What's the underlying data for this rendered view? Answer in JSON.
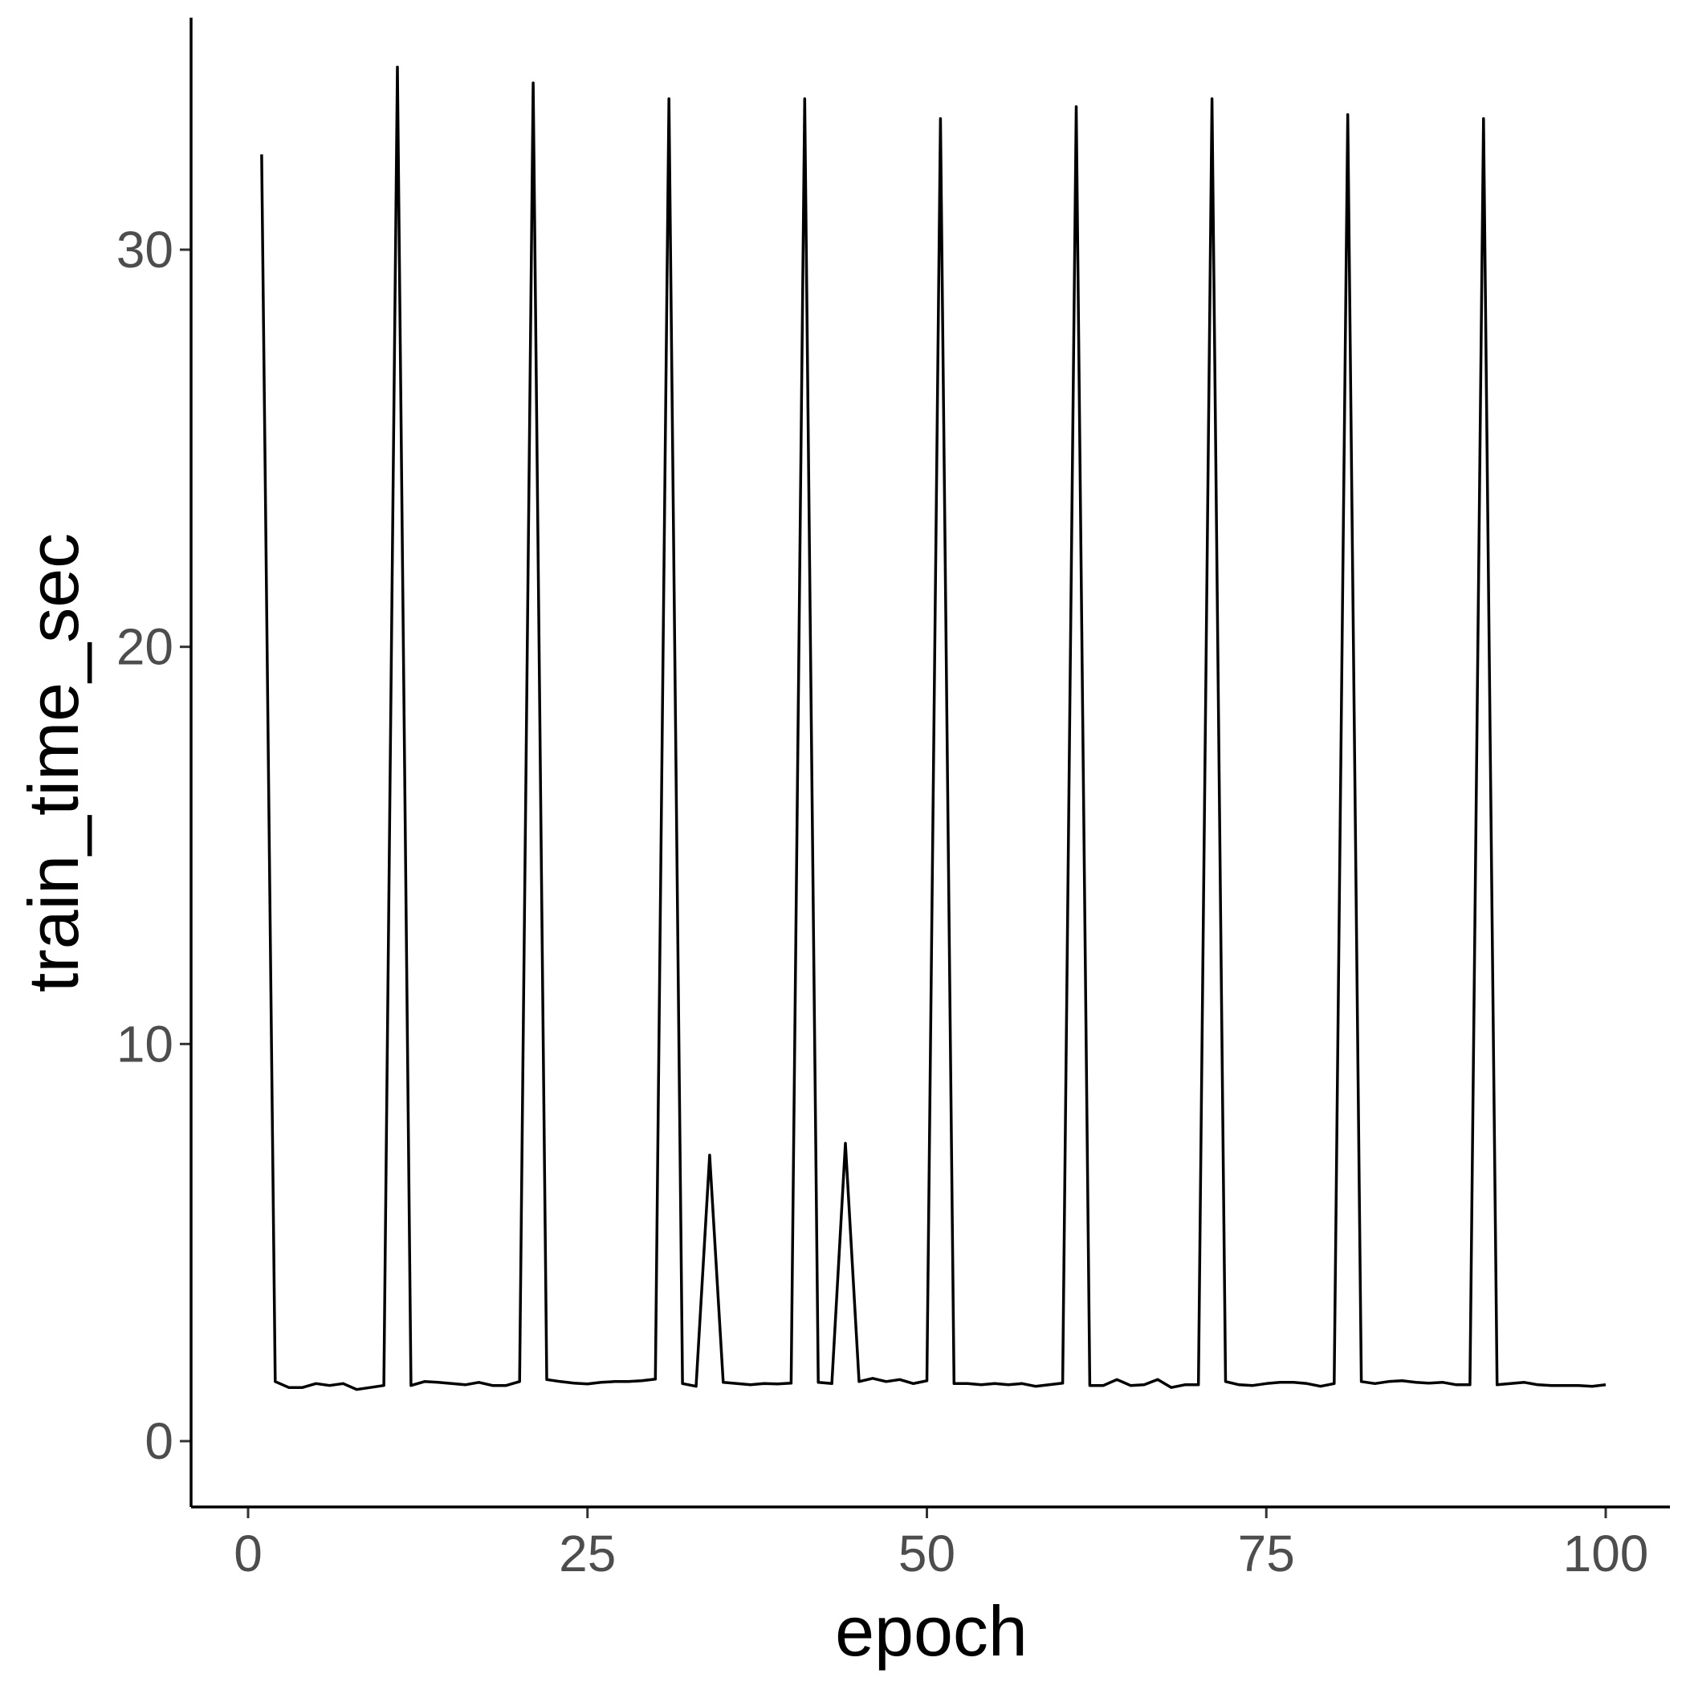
{
  "chart_data": {
    "type": "line",
    "xlabel": "epoch",
    "ylabel": "train_time_sec",
    "xlim": [
      -4,
      105
    ],
    "ylim": [
      -1.7,
      34.6
    ],
    "x_ticks": [
      0,
      25,
      50,
      75,
      100
    ],
    "y_ticks": [
      0,
      10,
      20,
      30
    ],
    "x_tick_labels": [
      "0",
      "25",
      "50",
      "75",
      "100"
    ],
    "y_tick_labels": [
      "0",
      "10",
      "20",
      "30"
    ],
    "grid": false,
    "legend": "none",
    "line_color": "#000000",
    "series": [
      {
        "x": [
          1,
          2,
          3,
          4,
          5,
          6,
          7,
          8,
          9,
          10,
          11,
          12,
          13,
          14,
          15,
          16,
          17,
          18,
          19,
          20,
          21,
          22,
          23,
          24,
          25,
          26,
          27,
          28,
          29,
          30,
          31,
          32,
          33,
          34,
          35,
          36,
          37,
          38,
          39,
          40,
          41,
          42,
          43,
          44,
          45,
          46,
          47,
          48,
          49,
          50,
          51,
          52,
          53,
          54,
          55,
          56,
          57,
          58,
          59,
          60,
          61,
          62,
          63,
          64,
          65,
          66,
          67,
          68,
          69,
          70,
          71,
          72,
          73,
          74,
          75,
          76,
          77,
          78,
          79,
          80,
          81,
          82,
          83,
          84,
          85,
          86,
          87,
          88,
          89,
          90,
          91,
          92,
          93,
          94,
          95,
          96,
          97,
          98,
          99,
          100
        ],
        "values": [
          32.4,
          1.5,
          1.35,
          1.35,
          1.45,
          1.4,
          1.45,
          1.3,
          1.35,
          1.4,
          34.6,
          1.4,
          1.5,
          1.48,
          1.45,
          1.42,
          1.48,
          1.4,
          1.4,
          1.5,
          34.2,
          1.55,
          1.5,
          1.46,
          1.44,
          1.48,
          1.5,
          1.5,
          1.52,
          1.56,
          33.8,
          1.45,
          1.38,
          7.2,
          1.48,
          1.45,
          1.42,
          1.45,
          1.44,
          1.46,
          33.8,
          1.48,
          1.45,
          7.5,
          1.5,
          1.58,
          1.5,
          1.55,
          1.45,
          1.52,
          33.3,
          1.45,
          1.45,
          1.42,
          1.45,
          1.42,
          1.45,
          1.38,
          1.42,
          1.46,
          33.6,
          1.4,
          1.4,
          1.55,
          1.4,
          1.42,
          1.55,
          1.35,
          1.42,
          1.42,
          33.8,
          1.5,
          1.42,
          1.4,
          1.45,
          1.48,
          1.48,
          1.45,
          1.38,
          1.45,
          33.4,
          1.5,
          1.45,
          1.5,
          1.52,
          1.48,
          1.46,
          1.48,
          1.42,
          1.42,
          33.3,
          1.42,
          1.45,
          1.48,
          1.42,
          1.4,
          1.4,
          1.4,
          1.38,
          1.42
        ]
      }
    ]
  }
}
